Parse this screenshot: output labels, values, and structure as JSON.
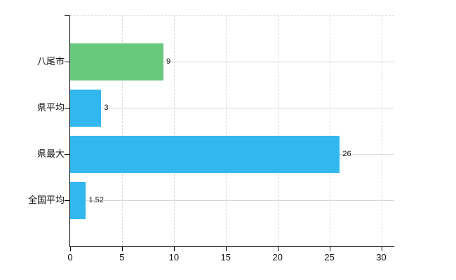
{
  "chart_data": {
    "type": "bar",
    "orientation": "horizontal",
    "title": "",
    "xlabel": "",
    "ylabel": "",
    "categories": [
      "八尾市",
      "県平均",
      "県最大",
      "全国平均"
    ],
    "values": [
      9,
      3,
      26,
      1.52
    ],
    "value_labels": [
      "9",
      "3",
      "26",
      "1.52"
    ],
    "bar_colors": [
      "#68c97d",
      "#33b7ef",
      "#33b7ef",
      "#33b7ef"
    ],
    "x_ticks": [
      0,
      5,
      10,
      15,
      20,
      25,
      30
    ],
    "x_tick_labels": [
      "0",
      "5",
      "10",
      "15",
      "20",
      "25",
      "30"
    ],
    "xlim": [
      0,
      31.25
    ],
    "grid": "on",
    "legend": "none"
  },
  "colors": {
    "background": "#ffffff",
    "axis": "#000000",
    "gridline": "#d9d9d9",
    "text": "#111111",
    "bar_green": "#68c97d",
    "bar_blue": "#33b7ef"
  }
}
